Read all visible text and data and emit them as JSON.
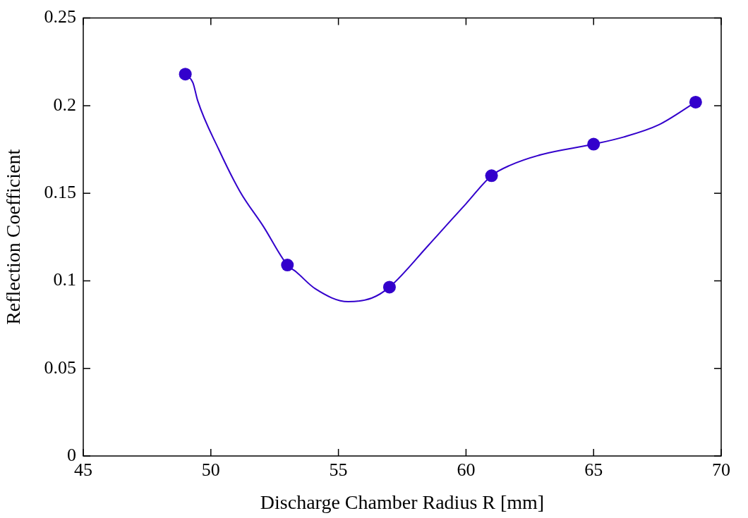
{
  "chart_data": {
    "type": "scatter",
    "xlabel": "Discharge Chamber Radius R [mm]",
    "ylabel": "Reflection Coefficient",
    "xlim": [
      45,
      70
    ],
    "xticks": [
      45,
      50,
      55,
      60,
      65,
      70
    ],
    "ylim": [
      0,
      0.25
    ],
    "yticks": [
      0,
      0.05,
      0.1,
      0.15,
      0.2,
      0.25
    ],
    "legend": false,
    "series": [
      {
        "type": "line",
        "color": "#3300cc",
        "marker": "none",
        "line_style": "solid",
        "x": [
          49,
          49.3,
          49.48,
          50.31,
          51.14,
          52.06,
          53,
          53.35,
          54.09,
          55.38,
          56.3,
          57,
          58.51,
          59.44,
          60,
          61,
          61.74,
          62.94,
          65,
          66.16,
          67.55,
          69
        ],
        "values": [
          0.218,
          0.213,
          0.203,
          0.175,
          0.151,
          0.131,
          0.109,
          0.105,
          0.0955,
          0.0881,
          0.0901,
          0.0964,
          0.12,
          0.135,
          0.144,
          0.16,
          0.166,
          0.172,
          0.178,
          0.182,
          0.189,
          0.202
        ]
      },
      {
        "color": "#3300cc",
        "marker": "circle",
        "x": [
          49,
          53,
          57,
          61,
          65,
          69
        ],
        "values": [
          0.218,
          0.109,
          0.0964,
          0.16,
          0.178,
          0.202
        ]
      }
    ]
  }
}
